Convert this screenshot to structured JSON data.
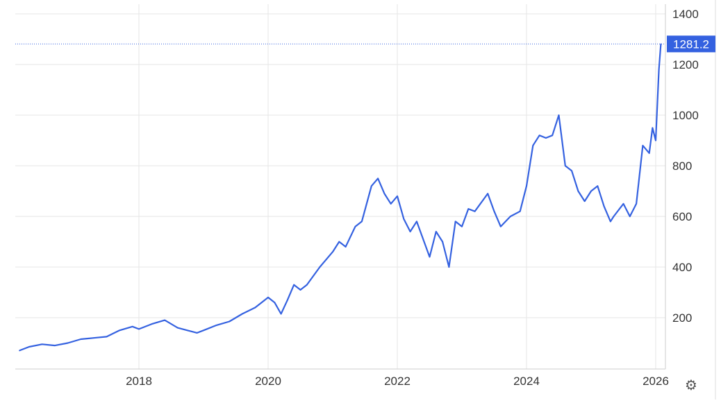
{
  "chart_data": {
    "type": "line",
    "title": "",
    "xlabel": "",
    "ylabel": "",
    "xlim": [
      2016.15,
      2026.15
    ],
    "ylim": [
      0,
      1450
    ],
    "x_ticks": [
      2018,
      2020,
      2022,
      2024,
      2026
    ],
    "x_tick_labels": [
      "2018",
      "2020",
      "2022",
      "2024",
      "2026"
    ],
    "y_ticks": [
      200,
      400,
      600,
      800,
      1000,
      1200,
      1400
    ],
    "y_tick_labels": [
      "200",
      "400",
      "600",
      "800",
      "1000",
      "1200",
      "1400"
    ],
    "grid": true,
    "last_value": 1281.2,
    "last_value_label": "1281.2",
    "colors": {
      "line": "#3461e0",
      "badge": "#3461e0",
      "grid": "#e6e6e6",
      "axis_text": "#333333"
    },
    "series": [
      {
        "x": [
          2016.15,
          2016.3,
          2016.5,
          2016.7,
          2016.9,
          2017.1,
          2017.3,
          2017.5,
          2017.7,
          2017.9,
          2018.0,
          2018.2,
          2018.4,
          2018.6,
          2018.75,
          2018.9,
          2019.0,
          2019.2,
          2019.4,
          2019.6,
          2019.8,
          2020.0,
          2020.1,
          2020.2,
          2020.3,
          2020.4,
          2020.5,
          2020.6,
          2020.8,
          2021.0,
          2021.1,
          2021.2,
          2021.35,
          2021.45,
          2021.6,
          2021.7,
          2021.8,
          2021.9,
          2022.0,
          2022.1,
          2022.2,
          2022.3,
          2022.5,
          2022.6,
          2022.7,
          2022.8,
          2022.9,
          2023.0,
          2023.1,
          2023.2,
          2023.4,
          2023.5,
          2023.6,
          2023.75,
          2023.9,
          2024.0,
          2024.1,
          2024.2,
          2024.3,
          2024.4,
          2024.5,
          2024.6,
          2024.7,
          2024.8,
          2024.9,
          2025.0,
          2025.1,
          2025.2,
          2025.3,
          2025.35,
          2025.5,
          2025.6,
          2025.7,
          2025.8,
          2025.9,
          2025.95,
          2026.0,
          2026.05,
          2026.08
        ],
        "y": [
          70,
          85,
          95,
          90,
          100,
          115,
          120,
          125,
          150,
          165,
          155,
          175,
          190,
          160,
          150,
          140,
          150,
          170,
          185,
          215,
          240,
          280,
          260,
          215,
          270,
          330,
          310,
          330,
          400,
          460,
          500,
          480,
          560,
          580,
          720,
          750,
          690,
          650,
          680,
          590,
          540,
          580,
          440,
          540,
          500,
          400,
          580,
          560,
          630,
          620,
          690,
          620,
          560,
          600,
          620,
          720,
          880,
          920,
          910,
          920,
          1000,
          800,
          780,
          700,
          660,
          700,
          720,
          640,
          580,
          600,
          650,
          600,
          650,
          880,
          850,
          950,
          900,
          1180,
          1281.2
        ]
      }
    ]
  }
}
